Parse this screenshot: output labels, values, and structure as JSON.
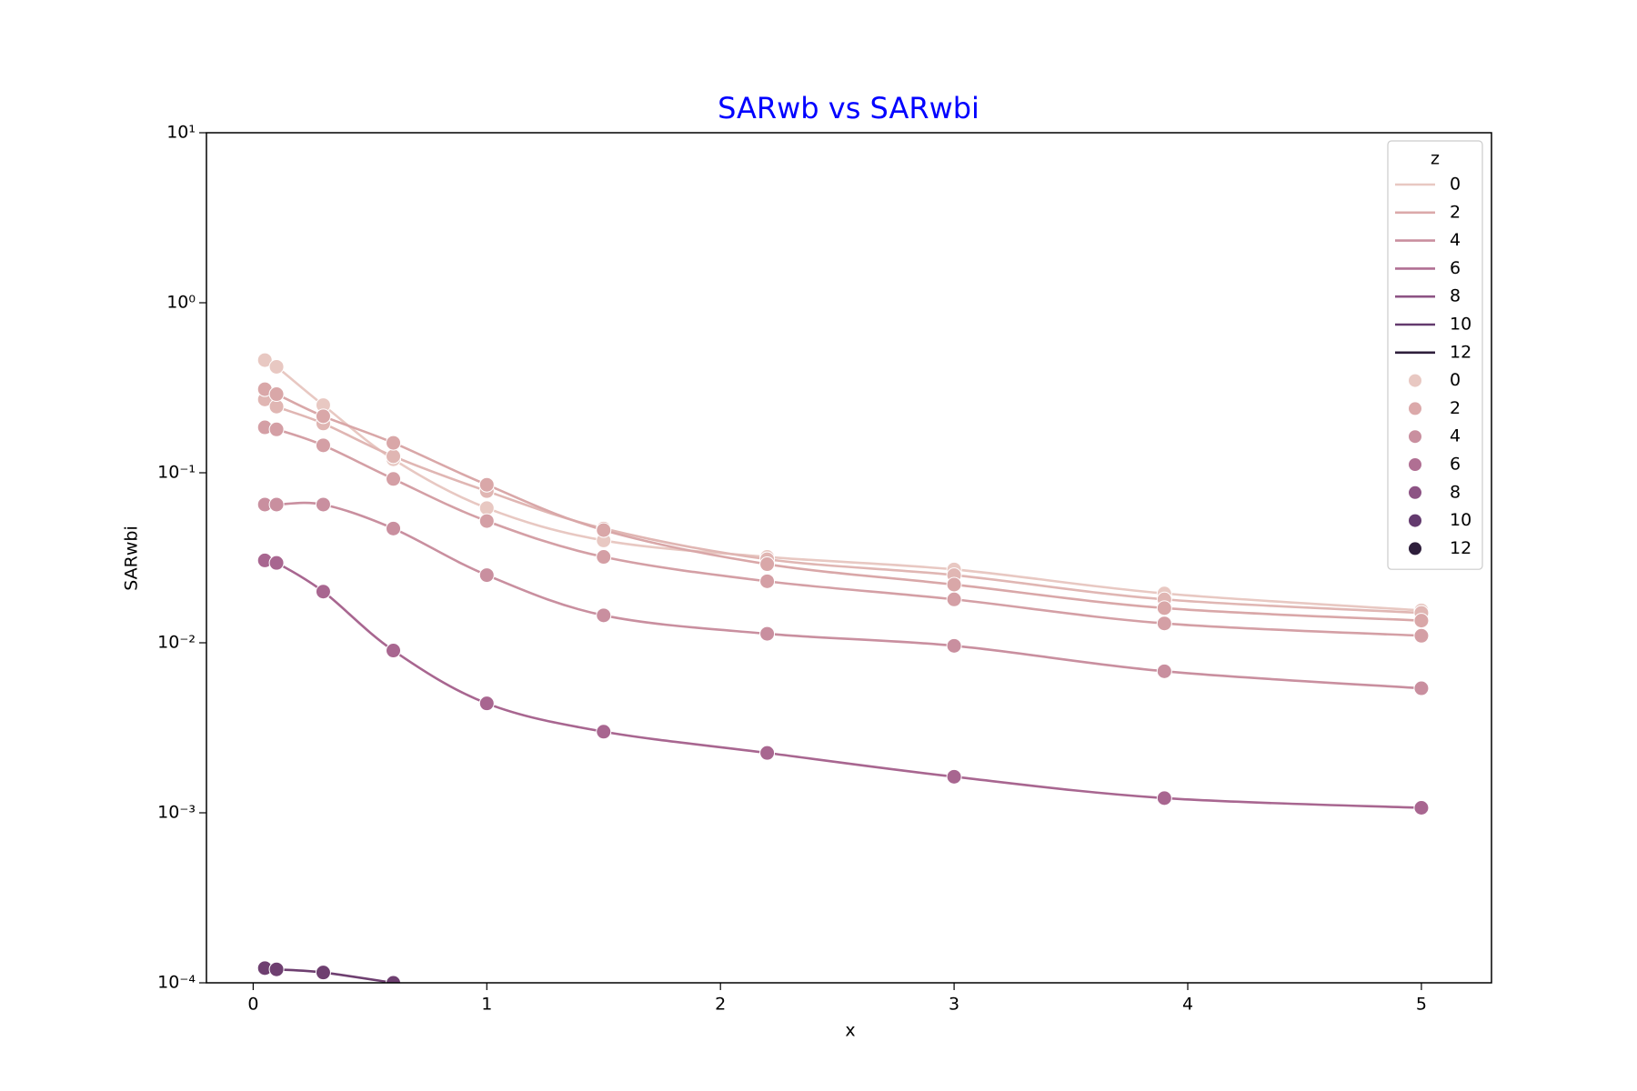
{
  "chart_data": {
    "type": "line",
    "markers": true,
    "smooth": true,
    "title": "SARwb vs SARwbi",
    "title_color": "#0000ff",
    "xlabel": "x",
    "ylabel": "SARwbi",
    "x": [
      0.05,
      0.1,
      0.3,
      0.6,
      1,
      1.5,
      2.2,
      3,
      3.9,
      5
    ],
    "series": [
      {
        "color": "#e8c8c2",
        "values": [
          0.46,
          0.42,
          0.25,
          0.12,
          0.062,
          0.04,
          0.032,
          0.027,
          0.0195,
          0.0155
        ]
      },
      {
        "color": "#e0b6b3",
        "values": [
          0.27,
          0.245,
          0.195,
          0.125,
          0.078,
          0.047,
          0.031,
          0.025,
          0.018,
          0.015
        ]
      },
      {
        "color": "#d9a7a8",
        "values": [
          0.31,
          0.29,
          0.215,
          0.15,
          0.085,
          0.046,
          0.029,
          0.022,
          0.016,
          0.0135
        ]
      },
      {
        "color": "#d49fa5",
        "values": [
          0.185,
          0.18,
          0.145,
          0.092,
          0.052,
          0.032,
          0.023,
          0.018,
          0.013,
          0.011
        ]
      },
      {
        "color": "#c98f9f",
        "values": [
          0.065,
          0.065,
          0.065,
          0.047,
          0.025,
          0.0145,
          0.0113,
          0.0096,
          0.0068,
          0.0054
        ]
      },
      {
        "color": "#a86690",
        "values": [
          0.0305,
          0.0295,
          0.02,
          0.009,
          0.0044,
          0.003,
          0.00225,
          0.00163,
          0.00122,
          0.00107
        ]
      },
      {
        "color": "#6e3f70",
        "values": [
          0.000122,
          0.00012,
          0.000115,
          0.0001,
          null,
          null,
          null,
          null,
          null,
          null
        ]
      }
    ],
    "xlim": [
      -0.2,
      5.3
    ],
    "xticks": [
      0,
      1,
      2,
      3,
      4,
      5
    ],
    "ylim": [
      0.0001,
      10
    ],
    "log_y": true,
    "yticks": [
      {
        "value": 0.0001,
        "label": "10⁻⁴"
      },
      {
        "value": 0.001,
        "label": "10⁻³"
      },
      {
        "value": 0.01,
        "label": "10⁻²"
      },
      {
        "value": 0.1,
        "label": "10⁻¹"
      },
      {
        "value": 1,
        "label": "10⁰"
      },
      {
        "value": 10,
        "label": "10¹"
      }
    ],
    "grid": false,
    "legend": {
      "position": "upper right",
      "title": "z",
      "labels": [
        0,
        2,
        4,
        6,
        8,
        10,
        12
      ],
      "colors": [
        "#e8c8c2",
        "#dba9aa",
        "#c98f9f",
        "#b06f93",
        "#8d5384",
        "#633a6e",
        "#2e1e3b"
      ]
    }
  }
}
